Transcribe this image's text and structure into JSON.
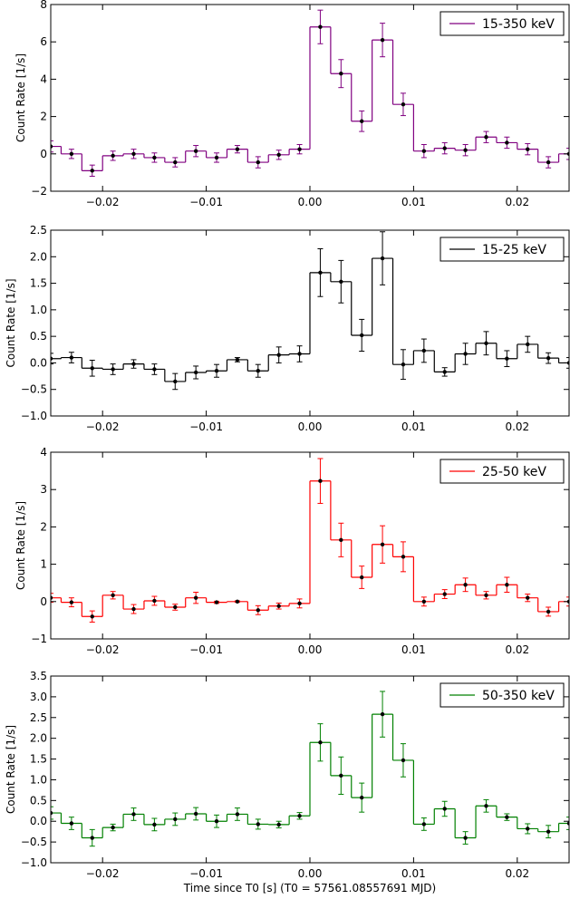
{
  "chart_data": [
    {
      "type": "step-errorbar",
      "ylabel": "Count Rate [1/s]",
      "x": [
        -0.025,
        -0.023,
        -0.021,
        -0.019,
        -0.017,
        -0.015,
        -0.013,
        -0.011,
        -0.009,
        -0.007,
        -0.005,
        -0.003,
        -0.001,
        0.001,
        0.003,
        0.005,
        0.007,
        0.009,
        0.011,
        0.013,
        0.015,
        0.017,
        0.019,
        0.021,
        0.023,
        0.025
      ],
      "series": [
        {
          "name": "15-350 keV",
          "color": "#800080",
          "marker_color": "#000000",
          "values": [
            0.4,
            0.0,
            -0.9,
            -0.1,
            0.0,
            -0.2,
            -0.45,
            0.15,
            -0.2,
            0.25,
            -0.45,
            -0.05,
            0.25,
            6.8,
            4.3,
            1.75,
            6.1,
            2.65,
            0.15,
            0.3,
            0.2,
            0.9,
            0.6,
            0.25,
            -0.45,
            0.0
          ],
          "errors": [
            0.3,
            0.25,
            0.3,
            0.25,
            0.25,
            0.25,
            0.25,
            0.3,
            0.25,
            0.2,
            0.3,
            0.25,
            0.25,
            0.9,
            0.75,
            0.55,
            0.9,
            0.6,
            0.35,
            0.3,
            0.3,
            0.3,
            0.3,
            0.3,
            0.3,
            0.3
          ]
        }
      ],
      "xlim": [
        -0.025,
        0.025
      ],
      "ylim": [
        -2,
        8
      ],
      "xticks": [
        {
          "value": -0.02,
          "label": "−0.02"
        },
        {
          "value": -0.01,
          "label": "−0.01"
        },
        {
          "value": 0,
          "label": "0.00"
        },
        {
          "value": 0.01,
          "label": "0.01"
        },
        {
          "value": 0.02,
          "label": "0.02"
        }
      ],
      "yticks": [
        {
          "value": -2,
          "label": "−2"
        },
        0,
        2,
        4,
        6,
        8
      ],
      "legend": "upper right"
    },
    {
      "type": "step-errorbar",
      "ylabel": "Count Rate [1/s]",
      "x": [
        -0.025,
        -0.023,
        -0.021,
        -0.019,
        -0.017,
        -0.015,
        -0.013,
        -0.011,
        -0.009,
        -0.007,
        -0.005,
        -0.003,
        -0.001,
        0.001,
        0.003,
        0.005,
        0.007,
        0.009,
        0.011,
        0.013,
        0.015,
        0.017,
        0.019,
        0.021,
        0.023,
        0.025
      ],
      "series": [
        {
          "name": "15-25 keV",
          "color": "#000000",
          "marker_color": "#000000",
          "values": [
            0.08,
            0.1,
            -0.1,
            -0.12,
            -0.02,
            -0.12,
            -0.35,
            -0.18,
            -0.15,
            0.06,
            -0.15,
            0.15,
            0.17,
            1.7,
            1.53,
            0.52,
            1.97,
            -0.03,
            0.23,
            -0.17,
            0.17,
            0.37,
            0.08,
            0.35,
            0.09,
            0.0
          ],
          "errors": [
            0.1,
            0.1,
            0.15,
            0.1,
            0.08,
            0.1,
            0.15,
            0.12,
            0.12,
            0.04,
            0.12,
            0.15,
            0.15,
            0.45,
            0.4,
            0.3,
            0.5,
            0.28,
            0.22,
            0.08,
            0.2,
            0.22,
            0.15,
            0.15,
            0.1,
            0.1
          ]
        }
      ],
      "xlim": [
        -0.025,
        0.025
      ],
      "ylim": [
        -1,
        2.5
      ],
      "xticks": [
        {
          "value": -0.02,
          "label": "−0.02"
        },
        {
          "value": -0.01,
          "label": "−0.01"
        },
        {
          "value": 0,
          "label": "0.00"
        },
        {
          "value": 0.01,
          "label": "0.01"
        },
        {
          "value": 0.02,
          "label": "0.02"
        }
      ],
      "yticks": [
        {
          "value": -1,
          "label": "−1.0"
        },
        {
          "value": -0.5,
          "label": "−0.5"
        },
        {
          "value": 0,
          "label": "0.0"
        },
        0.5,
        {
          "value": 1,
          "label": "1.0"
        },
        1.5,
        {
          "value": 2,
          "label": "2.0"
        },
        2.5
      ],
      "legend": "upper right"
    },
    {
      "type": "step-errorbar",
      "ylabel": "Count Rate [1/s]",
      "x": [
        -0.025,
        -0.023,
        -0.021,
        -0.019,
        -0.017,
        -0.015,
        -0.013,
        -0.011,
        -0.009,
        -0.007,
        -0.005,
        -0.003,
        -0.001,
        0.001,
        0.003,
        0.005,
        0.007,
        0.009,
        0.011,
        0.013,
        0.015,
        0.017,
        0.019,
        0.021,
        0.023,
        0.025
      ],
      "series": [
        {
          "name": "25-50 keV",
          "color": "#ff0000",
          "marker_color": "#000000",
          "values": [
            0.1,
            -0.02,
            -0.4,
            0.17,
            -0.2,
            0.02,
            -0.15,
            0.1,
            -0.02,
            0.0,
            -0.23,
            -0.12,
            -0.05,
            3.23,
            1.65,
            0.65,
            1.53,
            1.2,
            0.0,
            0.2,
            0.45,
            0.17,
            0.45,
            0.1,
            -0.27,
            0.0
          ],
          "errors": [
            0.12,
            0.12,
            0.15,
            0.1,
            0.12,
            0.12,
            0.08,
            0.15,
            0.03,
            0.02,
            0.12,
            0.08,
            0.12,
            0.6,
            0.45,
            0.3,
            0.5,
            0.4,
            0.12,
            0.12,
            0.18,
            0.1,
            0.2,
            0.1,
            0.12,
            0.12
          ]
        }
      ],
      "xlim": [
        -0.025,
        0.025
      ],
      "ylim": [
        -1,
        4
      ],
      "xticks": [
        {
          "value": -0.02,
          "label": "−0.02"
        },
        {
          "value": -0.01,
          "label": "−0.01"
        },
        {
          "value": 0,
          "label": "0.00"
        },
        {
          "value": 0.01,
          "label": "0.01"
        },
        {
          "value": 0.02,
          "label": "0.02"
        }
      ],
      "yticks": [
        {
          "value": -1,
          "label": "−1"
        },
        0,
        1,
        2,
        3,
        4
      ],
      "legend": "upper right"
    },
    {
      "type": "step-errorbar",
      "ylabel": "Count Rate [1/s]",
      "xlabel": "Time since T0 [s] (T0 = 57561.08557691 MJD)",
      "x": [
        -0.025,
        -0.023,
        -0.021,
        -0.019,
        -0.017,
        -0.015,
        -0.013,
        -0.011,
        -0.009,
        -0.007,
        -0.005,
        -0.003,
        -0.001,
        0.001,
        0.003,
        0.005,
        0.007,
        0.009,
        0.011,
        0.013,
        0.015,
        0.017,
        0.019,
        0.021,
        0.023,
        0.025
      ],
      "series": [
        {
          "name": "50-350 keV",
          "color": "#008000",
          "marker_color": "#000000",
          "values": [
            0.2,
            -0.05,
            -0.4,
            -0.15,
            0.17,
            -0.08,
            0.05,
            0.18,
            0.0,
            0.17,
            -0.07,
            -0.08,
            0.13,
            1.9,
            1.1,
            0.57,
            2.58,
            1.47,
            -0.07,
            0.3,
            -0.4,
            0.37,
            0.1,
            -0.18,
            -0.25,
            -0.05
          ],
          "errors": [
            0.15,
            0.15,
            0.2,
            0.08,
            0.15,
            0.15,
            0.15,
            0.15,
            0.15,
            0.15,
            0.12,
            0.08,
            0.08,
            0.45,
            0.45,
            0.35,
            0.55,
            0.4,
            0.15,
            0.18,
            0.15,
            0.15,
            0.08,
            0.12,
            0.15,
            0.15
          ]
        }
      ],
      "xlim": [
        -0.025,
        0.025
      ],
      "ylim": [
        -1,
        3.5
      ],
      "xticks": [
        {
          "value": -0.02,
          "label": "−0.02"
        },
        {
          "value": -0.01,
          "label": "−0.01"
        },
        {
          "value": 0,
          "label": "0.00"
        },
        {
          "value": 0.01,
          "label": "0.01"
        },
        {
          "value": 0.02,
          "label": "0.02"
        }
      ],
      "yticks": [
        {
          "value": -1,
          "label": "−1.0"
        },
        {
          "value": -0.5,
          "label": "−0.5"
        },
        {
          "value": 0,
          "label": "0.0"
        },
        0.5,
        {
          "value": 1,
          "label": "1.0"
        },
        1.5,
        {
          "value": 2,
          "label": "2.0"
        },
        2.5,
        {
          "value": 3,
          "label": "3.0"
        },
        3.5
      ],
      "legend": "upper right"
    }
  ]
}
